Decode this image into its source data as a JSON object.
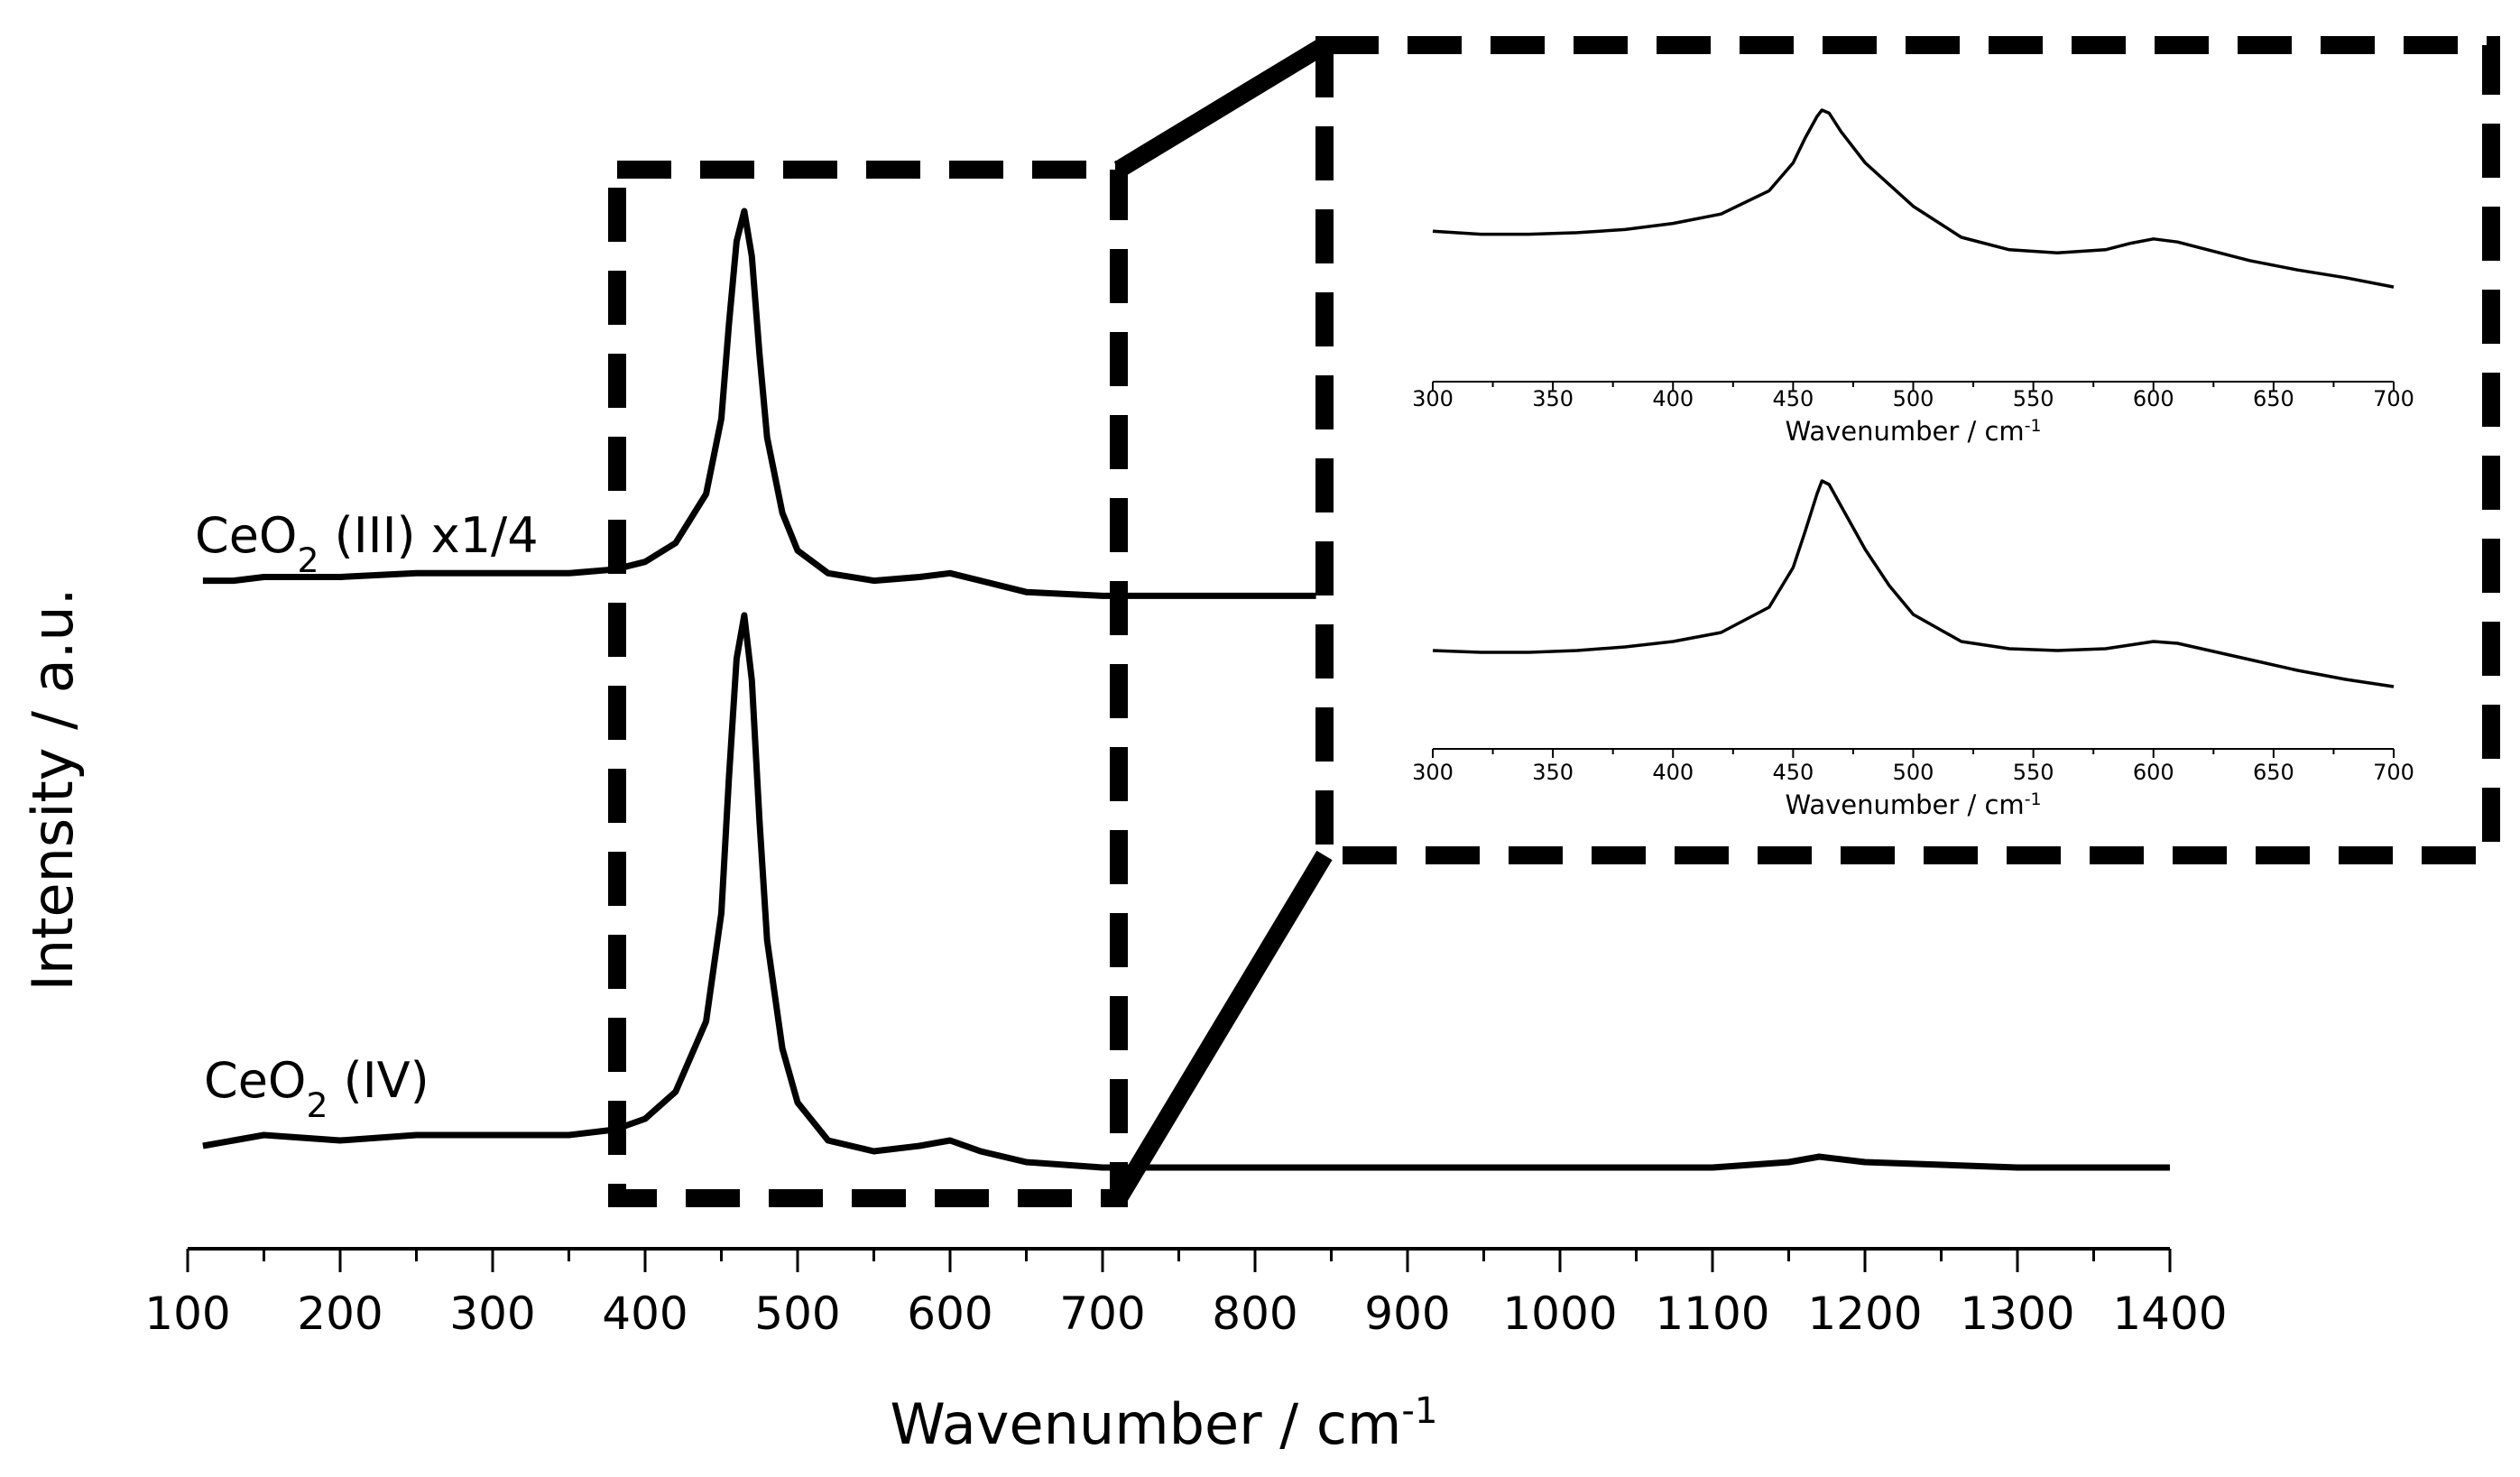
{
  "chart_data": [
    {
      "type": "line",
      "panel": "main",
      "xlabel": "Wavenumber / cm",
      "xlabel_superscript": "-1",
      "ylabel": "Intensity / a.u.",
      "xlim": [
        100,
        1400
      ],
      "xticks": [
        "100",
        "200",
        "300",
        "400",
        "500",
        "600",
        "700",
        "800",
        "900",
        "1000",
        "1100",
        "1200",
        "1300",
        "1400"
      ],
      "yticks_shown": false,
      "grid": false,
      "series": [
        {
          "name": "CeO2 (III) x1/4",
          "label_main": "CeO",
          "label_sub": "2",
          "label_rest": " (III) x1/4",
          "x": [
            110,
            130,
            150,
            200,
            250,
            300,
            350,
            380,
            400,
            420,
            440,
            450,
            455,
            460,
            465,
            470,
            475,
            480,
            490,
            500,
            520,
            550,
            580,
            600,
            620,
            650,
            700,
            750,
            800,
            840
          ],
          "y": [
            0.02,
            0.02,
            0.03,
            0.03,
            0.04,
            0.04,
            0.04,
            0.05,
            0.07,
            0.12,
            0.25,
            0.45,
            0.7,
            0.92,
            1.0,
            0.88,
            0.62,
            0.4,
            0.2,
            0.1,
            0.04,
            0.02,
            0.03,
            0.04,
            0.02,
            -0.01,
            -0.02,
            -0.02,
            -0.02,
            -0.02
          ]
        },
        {
          "name": "CeO2 (IV)",
          "label_main": "CeO",
          "label_sub": "2",
          "label_rest": " (IV)",
          "x": [
            110,
            130,
            150,
            200,
            250,
            300,
            350,
            380,
            400,
            420,
            440,
            450,
            455,
            460,
            465,
            470,
            475,
            480,
            490,
            500,
            520,
            550,
            580,
            600,
            620,
            650,
            700,
            750,
            800,
            900,
            1000,
            1100,
            1150,
            1170,
            1200,
            1300,
            1400
          ],
          "y": [
            0.02,
            0.03,
            0.04,
            0.03,
            0.04,
            0.04,
            0.04,
            0.05,
            0.07,
            0.12,
            0.25,
            0.45,
            0.7,
            0.92,
            1.0,
            0.88,
            0.62,
            0.4,
            0.2,
            0.1,
            0.03,
            0.01,
            0.02,
            0.03,
            0.01,
            -0.01,
            -0.02,
            -0.02,
            -0.02,
            -0.02,
            -0.02,
            -0.02,
            -0.01,
            0.0,
            -0.01,
            -0.02,
            -0.02
          ]
        }
      ]
    },
    {
      "type": "line",
      "panel": "inset-top",
      "xlabel": "Wavenumber / cm",
      "xlabel_superscript": "-1",
      "xlim": [
        300,
        700
      ],
      "xticks": [
        "300",
        "350",
        "400",
        "450",
        "500",
        "550",
        "600",
        "650",
        "700"
      ],
      "series": [
        {
          "x": [
            300,
            320,
            340,
            360,
            380,
            400,
            420,
            440,
            450,
            455,
            460,
            462,
            465,
            470,
            480,
            490,
            500,
            520,
            540,
            560,
            580,
            590,
            600,
            610,
            620,
            640,
            660,
            680,
            700
          ],
          "y": [
            0.22,
            0.2,
            0.2,
            0.21,
            0.23,
            0.27,
            0.33,
            0.48,
            0.66,
            0.82,
            0.96,
            1.0,
            0.98,
            0.86,
            0.66,
            0.52,
            0.38,
            0.18,
            0.1,
            0.08,
            0.1,
            0.14,
            0.17,
            0.15,
            0.11,
            0.03,
            -0.03,
            -0.08,
            -0.14
          ]
        }
      ]
    },
    {
      "type": "line",
      "panel": "inset-bottom",
      "xlabel": "Wavenumber / cm",
      "xlabel_superscript": "-1",
      "xlim": [
        300,
        700
      ],
      "xticks": [
        "300",
        "350",
        "400",
        "450",
        "500",
        "550",
        "600",
        "650",
        "700"
      ],
      "series": [
        {
          "x": [
            300,
            320,
            340,
            360,
            380,
            400,
            420,
            440,
            450,
            455,
            460,
            462,
            465,
            470,
            480,
            490,
            500,
            520,
            540,
            560,
            580,
            590,
            600,
            610,
            620,
            640,
            660,
            680,
            700
          ],
          "y": [
            0.06,
            0.05,
            0.05,
            0.06,
            0.08,
            0.11,
            0.16,
            0.3,
            0.52,
            0.72,
            0.93,
            1.0,
            0.98,
            0.86,
            0.62,
            0.42,
            0.26,
            0.11,
            0.07,
            0.06,
            0.07,
            0.09,
            0.11,
            0.1,
            0.07,
            0.01,
            -0.05,
            -0.1,
            -0.14
          ]
        }
      ]
    }
  ],
  "colors": {
    "line": "#000000",
    "background": "#ffffff"
  }
}
